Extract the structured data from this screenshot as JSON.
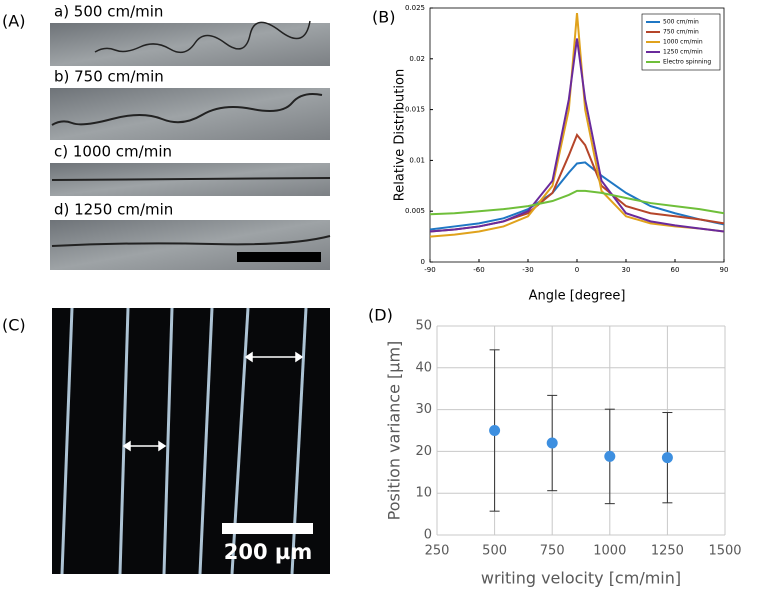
{
  "panel_labels": [
    "(A)",
    "(B)",
    "(C)",
    "(D)"
  ],
  "images": {
    "captions": [
      "a) 500 cm/min",
      "b) 750 cm/min",
      "c) 1000 cm/min",
      "d) 1250 cm/min"
    ],
    "scale_bar_label": "200 µm"
  },
  "chart_data": [
    {
      "type": "line",
      "ylabel": "Relative Distribution",
      "xlabel": "Angle [degree]",
      "x": [
        -90,
        -75,
        -60,
        -45,
        -30,
        -15,
        -5,
        0,
        5,
        15,
        30,
        45,
        60,
        75,
        90
      ],
      "xlim": [
        -90,
        90
      ],
      "xticks": [
        -90,
        -60,
        -30,
        0,
        30,
        60,
        90
      ],
      "ylim": [
        0,
        0.025
      ],
      "yticks": [
        0,
        0.005,
        0.01,
        0.015,
        0.02,
        0.025
      ],
      "legend": "upper right",
      "series": [
        {
          "name": "500 cm/min",
          "color": "#1f77c4",
          "values": [
            0.0032,
            0.0035,
            0.0038,
            0.0043,
            0.0052,
            0.0068,
            0.0088,
            0.0097,
            0.0098,
            0.0085,
            0.0068,
            0.0055,
            0.0048,
            0.0042,
            0.0037
          ]
        },
        {
          "name": "750 cm/min",
          "color": "#b5452a",
          "values": [
            0.003,
            0.0032,
            0.0035,
            0.004,
            0.0048,
            0.0068,
            0.0105,
            0.0125,
            0.0115,
            0.0075,
            0.0055,
            0.0048,
            0.0045,
            0.0042,
            0.0038
          ]
        },
        {
          "name": "1000 cm/min",
          "color": "#e0a21c",
          "values": [
            0.0025,
            0.0027,
            0.003,
            0.0035,
            0.0045,
            0.0075,
            0.015,
            0.0245,
            0.015,
            0.007,
            0.0045,
            0.0038,
            0.0035,
            0.0033,
            0.003
          ]
        },
        {
          "name": "1250 cm/min",
          "color": "#6a2a9c",
          "values": [
            0.003,
            0.0032,
            0.0035,
            0.004,
            0.005,
            0.008,
            0.016,
            0.022,
            0.016,
            0.008,
            0.0048,
            0.004,
            0.0036,
            0.0033,
            0.003
          ]
        },
        {
          "name": "Electro spinning",
          "color": "#6fbf3a",
          "values": [
            0.0047,
            0.0048,
            0.005,
            0.0052,
            0.0055,
            0.006,
            0.0066,
            0.007,
            0.007,
            0.0068,
            0.0063,
            0.0058,
            0.0055,
            0.0052,
            0.0048
          ]
        }
      ]
    },
    {
      "type": "scatter",
      "ylabel": "Position variance [µm]",
      "xlabel": "writing velocity [cm/min]",
      "x": [
        500,
        750,
        1000,
        1250
      ],
      "values": [
        25,
        22,
        18.8,
        18.5
      ],
      "errors": [
        19.3,
        11.4,
        11.3,
        10.8
      ],
      "color": "#3d8fe0",
      "grid": true,
      "xlim": [
        250,
        1500
      ],
      "xticks": [
        250,
        500,
        750,
        1000,
        1250,
        1500
      ],
      "ylim": [
        0,
        50
      ],
      "yticks": [
        0,
        10,
        20,
        30,
        40,
        50
      ]
    }
  ]
}
